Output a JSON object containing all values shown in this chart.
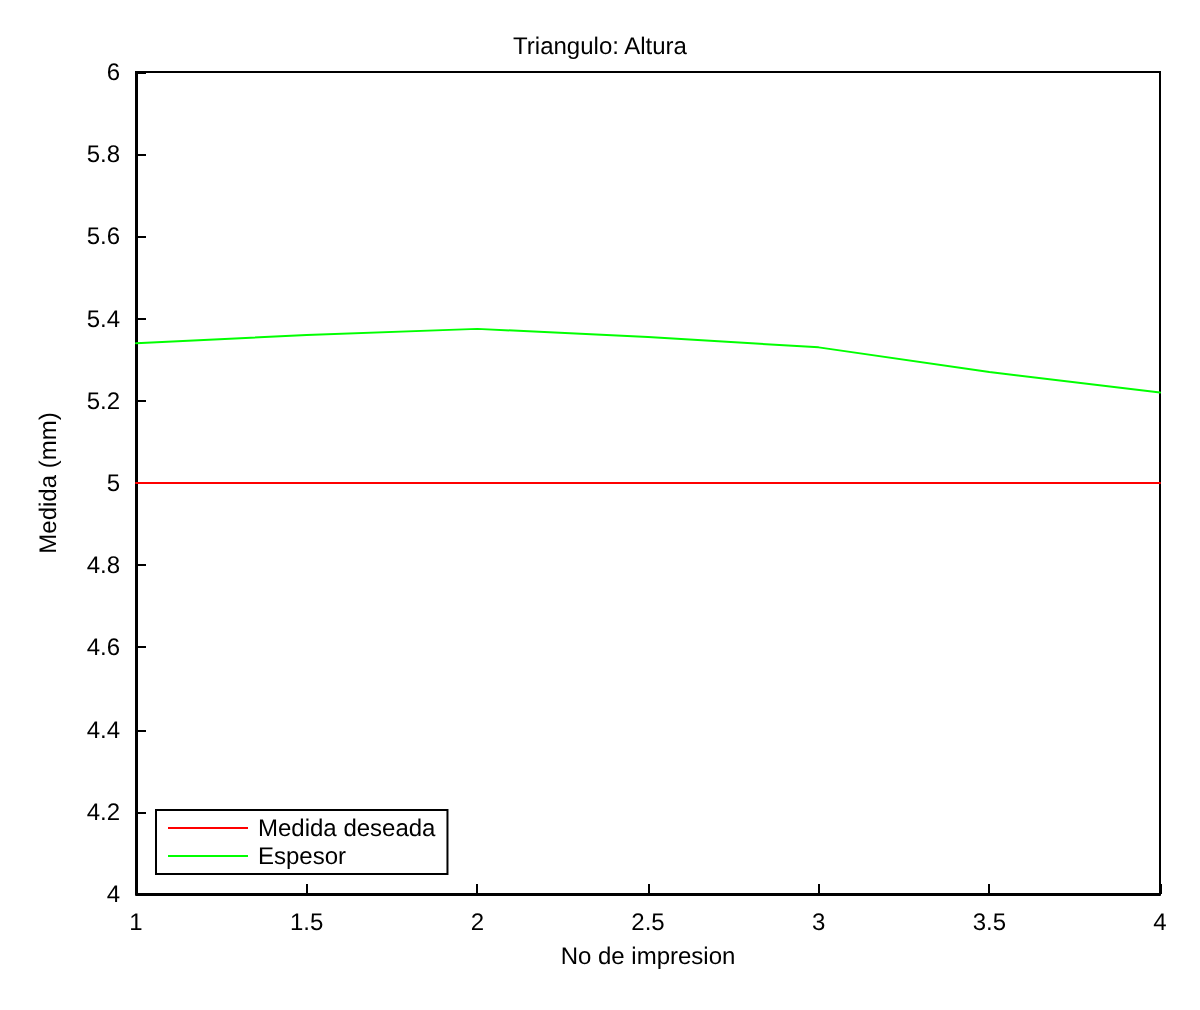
{
  "chart_data": {
    "type": "line",
    "title": "Triangulo: Altura",
    "xlabel": "No de impresion",
    "ylabel": "Medida (mm)",
    "series": [
      {
        "name": "Medida deseada",
        "color": "#ff0000",
        "x": [
          1,
          4
        ],
        "values": [
          5,
          5
        ]
      },
      {
        "name": "Espesor",
        "color": "#00ff00",
        "x": [
          1,
          1.5,
          2,
          2.5,
          3,
          3.5,
          4
        ],
        "values": [
          5.34,
          5.36,
          5.375,
          5.355,
          5.33,
          5.27,
          5.22
        ]
      }
    ],
    "xlim": [
      1,
      4
    ],
    "xticks": [
      1,
      1.5,
      2,
      2.5,
      3,
      3.5,
      4
    ],
    "ylim": [
      4,
      6
    ],
    "yticks": [
      4,
      4.2,
      4.4,
      4.6,
      4.8,
      5,
      5.2,
      5.4,
      5.6,
      5.8,
      6
    ],
    "grid": false,
    "legend": "bottom left",
    "marker": "none",
    "line_style": "solid"
  }
}
